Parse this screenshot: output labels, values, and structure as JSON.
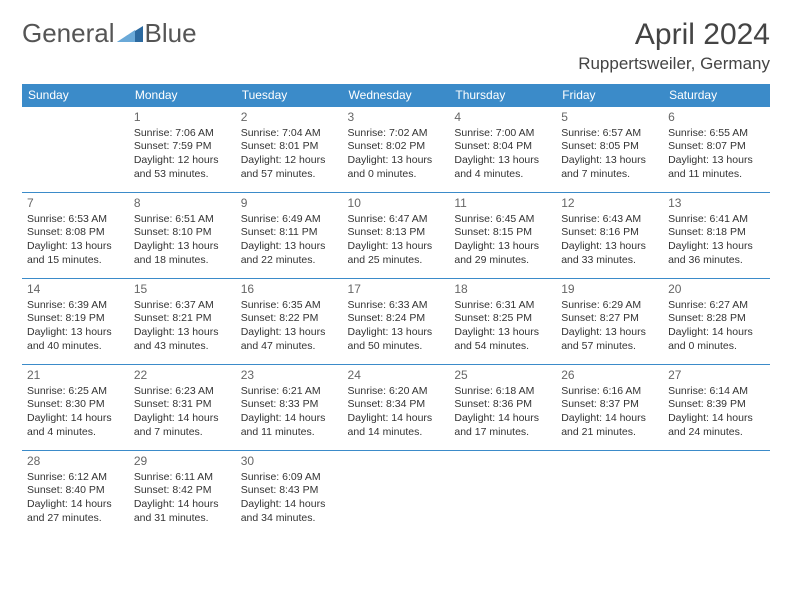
{
  "brand": {
    "name_a": "General",
    "name_b": "Blue"
  },
  "title": "April 2024",
  "location": "Ruppertsweiler, Germany",
  "colors": {
    "header_bg": "#3b8bc9",
    "header_text": "#ffffff",
    "grid_line": "#3b8bc9",
    "text": "#333333",
    "daynum": "#666666",
    "background": "#ffffff"
  },
  "typography": {
    "title_fontsize": 30,
    "location_fontsize": 17,
    "weekday_fontsize": 12,
    "body_fontsize": 10.5
  },
  "weekdays": [
    "Sunday",
    "Monday",
    "Tuesday",
    "Wednesday",
    "Thursday",
    "Friday",
    "Saturday"
  ],
  "weeks": [
    [
      {
        "day": "",
        "lines": []
      },
      {
        "day": "1",
        "lines": [
          "Sunrise: 7:06 AM",
          "Sunset: 7:59 PM",
          "Daylight: 12 hours and 53 minutes."
        ]
      },
      {
        "day": "2",
        "lines": [
          "Sunrise: 7:04 AM",
          "Sunset: 8:01 PM",
          "Daylight: 12 hours and 57 minutes."
        ]
      },
      {
        "day": "3",
        "lines": [
          "Sunrise: 7:02 AM",
          "Sunset: 8:02 PM",
          "Daylight: 13 hours and 0 minutes."
        ]
      },
      {
        "day": "4",
        "lines": [
          "Sunrise: 7:00 AM",
          "Sunset: 8:04 PM",
          "Daylight: 13 hours and 4 minutes."
        ]
      },
      {
        "day": "5",
        "lines": [
          "Sunrise: 6:57 AM",
          "Sunset: 8:05 PM",
          "Daylight: 13 hours and 7 minutes."
        ]
      },
      {
        "day": "6",
        "lines": [
          "Sunrise: 6:55 AM",
          "Sunset: 8:07 PM",
          "Daylight: 13 hours and 11 minutes."
        ]
      }
    ],
    [
      {
        "day": "7",
        "lines": [
          "Sunrise: 6:53 AM",
          "Sunset: 8:08 PM",
          "Daylight: 13 hours and 15 minutes."
        ]
      },
      {
        "day": "8",
        "lines": [
          "Sunrise: 6:51 AM",
          "Sunset: 8:10 PM",
          "Daylight: 13 hours and 18 minutes."
        ]
      },
      {
        "day": "9",
        "lines": [
          "Sunrise: 6:49 AM",
          "Sunset: 8:11 PM",
          "Daylight: 13 hours and 22 minutes."
        ]
      },
      {
        "day": "10",
        "lines": [
          "Sunrise: 6:47 AM",
          "Sunset: 8:13 PM",
          "Daylight: 13 hours and 25 minutes."
        ]
      },
      {
        "day": "11",
        "lines": [
          "Sunrise: 6:45 AM",
          "Sunset: 8:15 PM",
          "Daylight: 13 hours and 29 minutes."
        ]
      },
      {
        "day": "12",
        "lines": [
          "Sunrise: 6:43 AM",
          "Sunset: 8:16 PM",
          "Daylight: 13 hours and 33 minutes."
        ]
      },
      {
        "day": "13",
        "lines": [
          "Sunrise: 6:41 AM",
          "Sunset: 8:18 PM",
          "Daylight: 13 hours and 36 minutes."
        ]
      }
    ],
    [
      {
        "day": "14",
        "lines": [
          "Sunrise: 6:39 AM",
          "Sunset: 8:19 PM",
          "Daylight: 13 hours and 40 minutes."
        ]
      },
      {
        "day": "15",
        "lines": [
          "Sunrise: 6:37 AM",
          "Sunset: 8:21 PM",
          "Daylight: 13 hours and 43 minutes."
        ]
      },
      {
        "day": "16",
        "lines": [
          "Sunrise: 6:35 AM",
          "Sunset: 8:22 PM",
          "Daylight: 13 hours and 47 minutes."
        ]
      },
      {
        "day": "17",
        "lines": [
          "Sunrise: 6:33 AM",
          "Sunset: 8:24 PM",
          "Daylight: 13 hours and 50 minutes."
        ]
      },
      {
        "day": "18",
        "lines": [
          "Sunrise: 6:31 AM",
          "Sunset: 8:25 PM",
          "Daylight: 13 hours and 54 minutes."
        ]
      },
      {
        "day": "19",
        "lines": [
          "Sunrise: 6:29 AM",
          "Sunset: 8:27 PM",
          "Daylight: 13 hours and 57 minutes."
        ]
      },
      {
        "day": "20",
        "lines": [
          "Sunrise: 6:27 AM",
          "Sunset: 8:28 PM",
          "Daylight: 14 hours and 0 minutes."
        ]
      }
    ],
    [
      {
        "day": "21",
        "lines": [
          "Sunrise: 6:25 AM",
          "Sunset: 8:30 PM",
          "Daylight: 14 hours and 4 minutes."
        ]
      },
      {
        "day": "22",
        "lines": [
          "Sunrise: 6:23 AM",
          "Sunset: 8:31 PM",
          "Daylight: 14 hours and 7 minutes."
        ]
      },
      {
        "day": "23",
        "lines": [
          "Sunrise: 6:21 AM",
          "Sunset: 8:33 PM",
          "Daylight: 14 hours and 11 minutes."
        ]
      },
      {
        "day": "24",
        "lines": [
          "Sunrise: 6:20 AM",
          "Sunset: 8:34 PM",
          "Daylight: 14 hours and 14 minutes."
        ]
      },
      {
        "day": "25",
        "lines": [
          "Sunrise: 6:18 AM",
          "Sunset: 8:36 PM",
          "Daylight: 14 hours and 17 minutes."
        ]
      },
      {
        "day": "26",
        "lines": [
          "Sunrise: 6:16 AM",
          "Sunset: 8:37 PM",
          "Daylight: 14 hours and 21 minutes."
        ]
      },
      {
        "day": "27",
        "lines": [
          "Sunrise: 6:14 AM",
          "Sunset: 8:39 PM",
          "Daylight: 14 hours and 24 minutes."
        ]
      }
    ],
    [
      {
        "day": "28",
        "lines": [
          "Sunrise: 6:12 AM",
          "Sunset: 8:40 PM",
          "Daylight: 14 hours and 27 minutes."
        ]
      },
      {
        "day": "29",
        "lines": [
          "Sunrise: 6:11 AM",
          "Sunset: 8:42 PM",
          "Daylight: 14 hours and 31 minutes."
        ]
      },
      {
        "day": "30",
        "lines": [
          "Sunrise: 6:09 AM",
          "Sunset: 8:43 PM",
          "Daylight: 14 hours and 34 minutes."
        ]
      },
      {
        "day": "",
        "lines": []
      },
      {
        "day": "",
        "lines": []
      },
      {
        "day": "",
        "lines": []
      },
      {
        "day": "",
        "lines": []
      }
    ]
  ]
}
